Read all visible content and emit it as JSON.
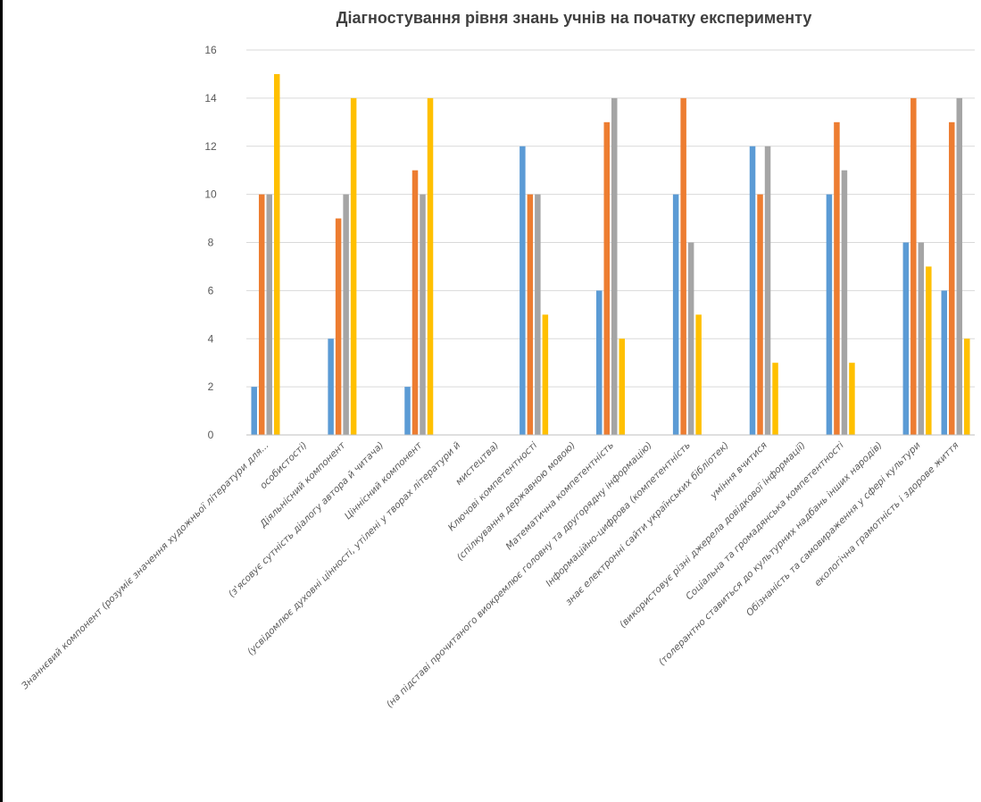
{
  "chart_data": {
    "type": "bar",
    "title": "Діагностування рівня знань учнів на початку експерименту",
    "xlabel": "",
    "ylabel": "",
    "ylim": [
      0,
      16
    ],
    "yticks": [
      0,
      2,
      4,
      6,
      8,
      10,
      12,
      14,
      16
    ],
    "grid": true,
    "legend": "none",
    "categories": [
      "Знаннєвий компонент (розуміє значення художньої літератури для...",
      "особистості)",
      "Діяльнісний компонент",
      "(з'ясовує сутність діалогу автора й читача)",
      "Ціннісний компонент",
      "(усвідомлює духовні цінності, утілені у творах літератури й",
      "мистецтва)",
      "Ключові компетентності",
      "(спілкування державною мовою)",
      "Математична компетентність",
      "(на підставі прочитаного виокремлює головну та другорядну інформацію)",
      "Інформаційно-цифрова (компетентність",
      "знає електронні сайти українських бібліотек)",
      "уміння вчитися",
      "(використовує різні джерела довідкової інформації)",
      "Соціальна та громадянська компетентності",
      "(толерантно ставиться до культурних надбань інших народів)",
      "Обізнаність та самовираження у сфері культури",
      "екологічна грамотність і здорове життя"
    ],
    "series": [
      {
        "color": "#5B9BD5",
        "values": [
          2,
          null,
          4,
          null,
          2,
          null,
          null,
          12,
          null,
          6,
          null,
          10,
          null,
          12,
          null,
          10,
          null,
          8,
          6
        ]
      },
      {
        "color": "#ED7D31",
        "values": [
          10,
          null,
          9,
          null,
          11,
          null,
          null,
          10,
          null,
          13,
          null,
          14,
          null,
          10,
          null,
          13,
          null,
          14,
          13
        ]
      },
      {
        "color": "#A5A5A5",
        "values": [
          10,
          null,
          10,
          null,
          10,
          null,
          null,
          10,
          null,
          14,
          null,
          8,
          null,
          12,
          null,
          11,
          null,
          8,
          14
        ]
      },
      {
        "color": "#FFC000",
        "values": [
          15,
          null,
          14,
          null,
          14,
          null,
          null,
          5,
          null,
          4,
          null,
          5,
          null,
          3,
          null,
          3,
          null,
          7,
          4
        ]
      }
    ],
    "colors": {
      "grid": "#D9D9D9",
      "axis": "#BFBFBF",
      "text": "#595959",
      "title": "#404040"
    }
  }
}
